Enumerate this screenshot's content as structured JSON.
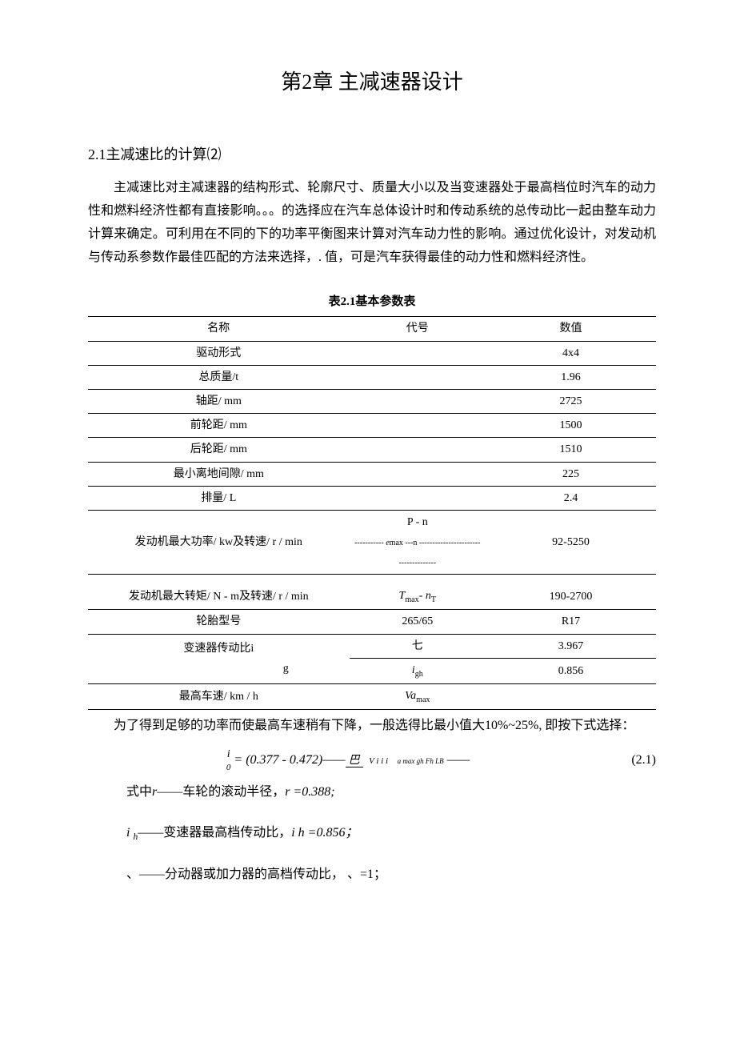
{
  "chapter_title": "第2章  主减速器设计",
  "section_title": "2.1主减速比的计算⑵",
  "para1": "主减速比对主减速器的结构形式、轮廓尺寸、质量大小以及当变速器处于最高档位时汽车的动力性和燃料经济性都有直接影响。。。的选择应在汽车总体设计时和传动系统的总传动比一起由整车动力计算来确定。可利用在不同的下的功率平衡图来计算对汽车动力性的影响。通过优化设计，对发动机与传动系参数作最佳匹配的方法来选择，. 值，可是汽车获得最佳的动力性和燃料经济性。",
  "table_caption": "表2.1基本参数表",
  "table": {
    "headers": {
      "name": "名称",
      "symbol": "代号",
      "value": "数值"
    },
    "rows": [
      {
        "name": "驱动形式",
        "symbol": "",
        "value": "4x4"
      },
      {
        "name": "总质量/t",
        "symbol": "",
        "value": "1.96"
      },
      {
        "name": "轴距/ mm",
        "symbol": "",
        "value": "2725"
      },
      {
        "name": "前轮距/ mm",
        "symbol": "",
        "value": "1500"
      },
      {
        "name": "后轮距/ mm",
        "symbol": "",
        "value": "1510"
      },
      {
        "name": "最小离地间隙/ mm",
        "symbol": "",
        "value": "225"
      },
      {
        "name": "排量/ L",
        "symbol": "",
        "value": "2.4"
      },
      {
        "name": "发动机最大功率/ kw及转速/ r / min",
        "symbol_html": "P - n<br><span style='font-size:10px'>----------- <i>e</i>max ---n -------------------------------------</span>",
        "value": "92-5250"
      },
      {
        "name": "发动机最大转矩/ N - m及转速/ r / min",
        "symbol_html": "<span class='sym'>T</span><sub>max</sub>- <span class='sym'>n<sub>T</sub></span>",
        "value": "190-2700"
      },
      {
        "name": "轮胎型号",
        "symbol": "265/65",
        "value": "R17"
      },
      {
        "name_rowspan": "变速器传动比i\n                                                g",
        "symbol_html": "七",
        "value": "3.967"
      },
      {
        "symbol_html": "<span class='sym'>i<sub>gh</sub></span>",
        "value": "0.856"
      },
      {
        "name": "最高车速/ km / h",
        "symbol_html": "<span class='sym'>Va</span><sub>max</sub>",
        "value": ""
      }
    ]
  },
  "para2": "为了得到足够的功率而使最高车速稍有下降，一般选得比最小值大10%~25%, 即按下式选择：",
  "equation": {
    "lhs": "i",
    "lhs_sub": "0",
    "rhs_lead": " = (0.377 - 0.472)——",
    "frac_top": "巴",
    "frac_bot1": "V   i   i   i",
    "frac_bot2": "a max gh Fh LB",
    "num": "(2.1)"
  },
  "def_intro_prefix": "式中",
  "defs": {
    "d1_sym": "r",
    "d1_text": "——车轮的滚动半径，",
    "d1_val": "r =0.388;",
    "d2_sym": "i ",
    "d2_sub": "h",
    "d2_text": "——变速器最高档传动比，",
    "d2_val": "i  h =0.856；",
    "d3_text": "、——分动器或加力器的高档传动比，  、=1；"
  }
}
